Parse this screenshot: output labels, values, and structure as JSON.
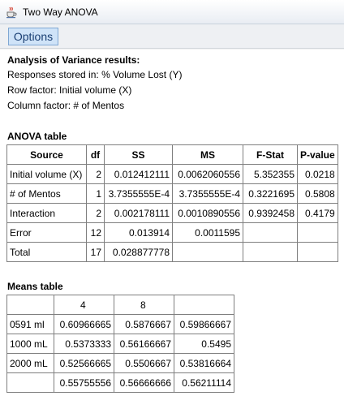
{
  "window": {
    "title": "Two Way ANOVA",
    "app_icon": "java-cup-icon"
  },
  "menu": {
    "options_label": "Options"
  },
  "results": {
    "heading": "Analysis of Variance results:",
    "responses": "Responses stored in: % Volume Lost (Y)",
    "row_factor": "Row factor: Initial volume (X)",
    "column_factor": "Column factor: # of Mentos"
  },
  "anova": {
    "title": "ANOVA table",
    "headers": [
      "Source",
      "df",
      "SS",
      "MS",
      "F-Stat",
      "P-value"
    ],
    "rows": [
      [
        "Initial volume (X)",
        "2",
        "0.012412111",
        "0.0062060556",
        "5.352355",
        "0.0218"
      ],
      [
        "# of Mentos",
        "1",
        "3.7355555E-4",
        "3.7355555E-4",
        "0.3221695",
        "0.5808"
      ],
      [
        "Interaction",
        "2",
        "0.002178111",
        "0.0010890556",
        "0.9392458",
        "0.4179"
      ],
      [
        "Error",
        "12",
        "0.013914",
        "0.0011595",
        "",
        ""
      ],
      [
        "Total",
        "17",
        "0.028877778",
        "",
        "",
        ""
      ]
    ]
  },
  "means": {
    "title": "Means table",
    "headers": [
      "",
      "4",
      "8",
      ""
    ],
    "rows": [
      [
        "0591 ml",
        "0.60966665",
        "0.5876667",
        "0.59866667"
      ],
      [
        "1000 mL",
        "0.5373333",
        "0.56166667",
        "0.5495"
      ],
      [
        "2000 mL",
        "0.52566665",
        "0.5506667",
        "0.53816664"
      ],
      [
        "",
        "0.55755556",
        "0.56666666",
        "0.56211114"
      ]
    ]
  }
}
